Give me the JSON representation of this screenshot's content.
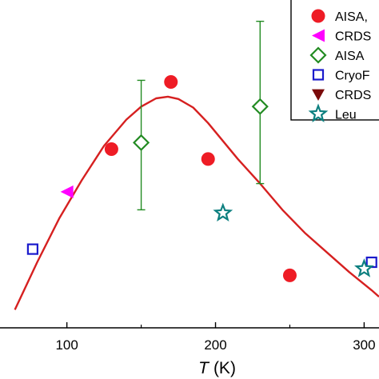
{
  "chart_data": {
    "type": "scatter",
    "xlabel_italic": "T",
    "xlabel_unit": "(K)",
    "xlim": [
      55,
      310
    ],
    "ylim": [
      0,
      1
    ],
    "x_ticks": [
      100,
      200,
      300
    ],
    "x_tick_labels": [
      "100",
      "200",
      "300"
    ],
    "legend_placement": "top-right",
    "legend": [
      {
        "label": "AISA,",
        "marker": "circle-filled",
        "color": "#ee1c25"
      },
      {
        "label": "CRDS",
        "marker": "triangle-left-filled",
        "color": "#ff00ff"
      },
      {
        "label": "AISA",
        "marker": "diamond-open",
        "color": "#228b22"
      },
      {
        "label": "CryoF",
        "marker": "square-open",
        "color": "#1a1acc"
      },
      {
        "label": "CRDS",
        "marker": "triangle-down-filled",
        "color": "#7a0a0a"
      },
      {
        "label": "Leu",
        "marker": "star-open",
        "color": "#0e8080"
      }
    ],
    "series": [
      {
        "marker": "circle-filled",
        "color": "#ee1c25",
        "points": [
          {
            "x": 130,
            "y": 0.545
          },
          {
            "x": 170,
            "y": 0.75
          },
          {
            "x": 195,
            "y": 0.515
          },
          {
            "x": 250,
            "y": 0.16
          }
        ]
      },
      {
        "marker": "triangle-left-filled",
        "color": "#ff00ff",
        "points": [
          {
            "x": 100,
            "y": 0.415
          }
        ]
      },
      {
        "marker": "diamond-open",
        "color": "#228b22",
        "points": [
          {
            "x": 150,
            "y": 0.565,
            "err_low": 0.36,
            "err_high": 0.755
          },
          {
            "x": 230,
            "y": 0.675,
            "err_low": 0.44,
            "err_high": 0.935
          }
        ]
      },
      {
        "marker": "square-open",
        "color": "#1a1acc",
        "points": [
          {
            "x": 77,
            "y": 0.24
          },
          {
            "x": 305,
            "y": 0.2
          }
        ]
      },
      {
        "marker": "star-open",
        "color": "#0e8080",
        "points": [
          {
            "x": 205,
            "y": 0.35
          },
          {
            "x": 300,
            "y": 0.18
          }
        ]
      }
    ],
    "fit_curve": {
      "color": "#d62020",
      "points": [
        [
          65,
          0.055
        ],
        [
          80,
          0.2
        ],
        [
          95,
          0.335
        ],
        [
          110,
          0.45
        ],
        [
          125,
          0.555
        ],
        [
          140,
          0.635
        ],
        [
          150,
          0.675
        ],
        [
          160,
          0.7
        ],
        [
          168,
          0.705
        ],
        [
          175,
          0.698
        ],
        [
          185,
          0.672
        ],
        [
          195,
          0.625
        ],
        [
          205,
          0.57
        ],
        [
          215,
          0.515
        ],
        [
          230,
          0.44
        ],
        [
          245,
          0.36
        ],
        [
          260,
          0.29
        ],
        [
          275,
          0.23
        ],
        [
          290,
          0.17
        ],
        [
          305,
          0.115
        ],
        [
          310,
          0.095
        ]
      ]
    }
  }
}
